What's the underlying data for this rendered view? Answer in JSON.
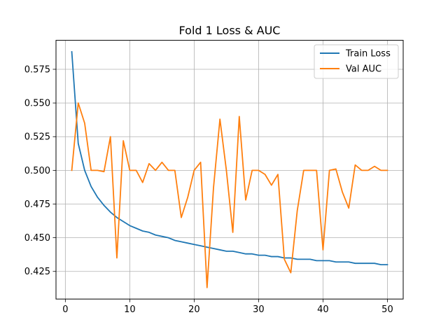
{
  "chart_data": {
    "type": "line",
    "title": "Fold 1 Loss & AUC",
    "xlabel": "",
    "ylabel": "",
    "xlim": [
      -1.45,
      52.45
    ],
    "ylim": [
      0.4045,
      0.5965
    ],
    "xticks": [
      0,
      10,
      20,
      30,
      40,
      50
    ],
    "yticks": [
      0.425,
      0.45,
      0.475,
      0.5,
      0.525,
      0.55,
      0.575
    ],
    "ytick_labels": [
      "0.425",
      "0.450",
      "0.475",
      "0.500",
      "0.525",
      "0.550",
      "0.575"
    ],
    "grid": true,
    "legend_position": "upper-right",
    "x": [
      1,
      2,
      3,
      4,
      5,
      6,
      7,
      8,
      9,
      10,
      11,
      12,
      13,
      14,
      15,
      16,
      17,
      18,
      19,
      20,
      21,
      22,
      23,
      24,
      25,
      26,
      27,
      28,
      29,
      30,
      31,
      32,
      33,
      34,
      35,
      36,
      37,
      38,
      39,
      40,
      41,
      42,
      43,
      44,
      45,
      46,
      47,
      48,
      49,
      50
    ],
    "series": [
      {
        "name": "Train Loss",
        "color": "#1f77b4",
        "values": [
          0.588,
          0.52,
          0.5,
          0.488,
          0.48,
          0.474,
          0.469,
          0.465,
          0.462,
          0.459,
          0.457,
          0.455,
          0.454,
          0.452,
          0.451,
          0.45,
          0.448,
          0.447,
          0.446,
          0.445,
          0.444,
          0.443,
          0.442,
          0.441,
          0.44,
          0.44,
          0.439,
          0.438,
          0.438,
          0.437,
          0.437,
          0.436,
          0.436,
          0.435,
          0.435,
          0.434,
          0.434,
          0.434,
          0.433,
          0.433,
          0.433,
          0.432,
          0.432,
          0.432,
          0.431,
          0.431,
          0.431,
          0.431,
          0.43,
          0.43
        ]
      },
      {
        "name": "Val AUC",
        "color": "#ff7f0e",
        "values": [
          0.5,
          0.55,
          0.535,
          0.5,
          0.5,
          0.499,
          0.525,
          0.435,
          0.522,
          0.5,
          0.5,
          0.491,
          0.505,
          0.5,
          0.506,
          0.5,
          0.5,
          0.465,
          0.48,
          0.5,
          0.506,
          0.413,
          0.487,
          0.538,
          0.5,
          0.454,
          0.54,
          0.478,
          0.5,
          0.5,
          0.497,
          0.489,
          0.497,
          0.434,
          0.424,
          0.47,
          0.5,
          0.5,
          0.5,
          0.441,
          0.5,
          0.501,
          0.484,
          0.472,
          0.504,
          0.5,
          0.5,
          0.503,
          0.5,
          0.5
        ]
      }
    ]
  }
}
